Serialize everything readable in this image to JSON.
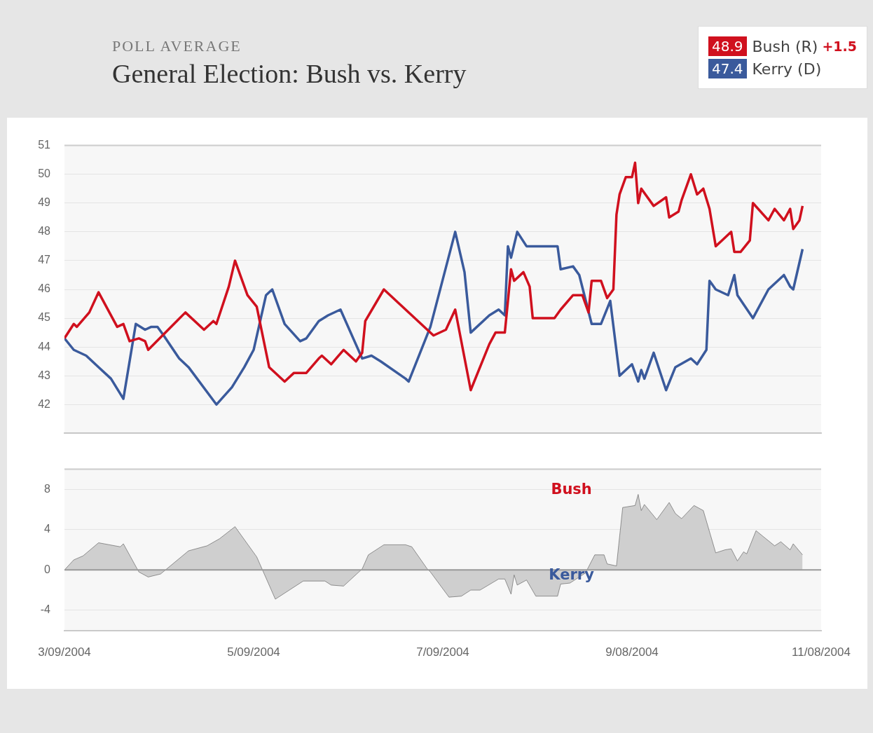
{
  "chart_data": [
    {
      "type": "line",
      "title": "General Election: Bush vs. Kerry",
      "subtitle": "POLL AVERAGE",
      "annotations": [
        "48.9",
        "47.4",
        "+1.5"
      ],
      "legend": "top right",
      "grid": "y",
      "tick_labels": "y",
      "line_style": "solid",
      "xlim": [
        "2004-03-09",
        "2004-11-08"
      ],
      "ylim": [
        41,
        51
      ],
      "yticks": [
        42,
        43,
        44,
        45,
        46,
        47,
        48,
        49,
        50,
        51
      ],
      "series": [
        {
          "name": "Bush (R)",
          "color": "#d0101e",
          "x": [
            "2004-03-09",
            "2004-03-12",
            "2004-03-13",
            "2004-03-17",
            "2004-03-20",
            "2004-03-26",
            "2004-03-28",
            "2004-03-30",
            "2004-04-02",
            "2004-04-04",
            "2004-04-05",
            "2004-04-17",
            "2004-04-23",
            "2004-04-26",
            "2004-04-27",
            "2004-05-01",
            "2004-05-03",
            "2004-05-07",
            "2004-05-10",
            "2004-05-14",
            "2004-05-19",
            "2004-05-22",
            "2004-05-26",
            "2004-05-30",
            "2004-05-31",
            "2004-06-03",
            "2004-06-07",
            "2004-06-11",
            "2004-06-13",
            "2004-06-14",
            "2004-06-20",
            "2004-07-06",
            "2004-07-10",
            "2004-07-13",
            "2004-07-18",
            "2004-07-24",
            "2004-07-26",
            "2004-07-29",
            "2004-07-31",
            "2004-08-01",
            "2004-08-04",
            "2004-08-06",
            "2004-08-07",
            "2004-08-14",
            "2004-08-16",
            "2004-08-20",
            "2004-08-23",
            "2004-08-25",
            "2004-08-26",
            "2004-08-29",
            "2004-08-31",
            "2004-09-02",
            "2004-09-03",
            "2004-09-04",
            "2004-09-06",
            "2004-09-08",
            "2004-09-09",
            "2004-09-10",
            "2004-09-11",
            "2004-09-15",
            "2004-09-19",
            "2004-09-20",
            "2004-09-23",
            "2004-09-24",
            "2004-09-27",
            "2004-09-29",
            "2004-10-01",
            "2004-10-03",
            "2004-10-05",
            "2004-10-07",
            "2004-10-10",
            "2004-10-11",
            "2004-10-13",
            "2004-10-16",
            "2004-10-17",
            "2004-10-22",
            "2004-10-24",
            "2004-10-27",
            "2004-10-29",
            "2004-10-30",
            "2004-11-01",
            "2004-11-02"
          ],
          "values": [
            44.3,
            44.8,
            44.7,
            45.2,
            45.9,
            44.7,
            44.8,
            44.2,
            44.3,
            44.2,
            43.9,
            45.2,
            44.6,
            44.9,
            44.8,
            46.1,
            47.0,
            45.8,
            45.4,
            43.3,
            42.8,
            43.1,
            43.1,
            43.6,
            43.7,
            43.4,
            43.9,
            43.5,
            43.8,
            44.9,
            46.0,
            44.4,
            44.6,
            45.3,
            42.5,
            44.1,
            44.5,
            44.5,
            46.7,
            46.3,
            46.6,
            46.1,
            45.0,
            45.0,
            45.3,
            45.8,
            45.8,
            45.2,
            46.3,
            46.3,
            45.7,
            46.0,
            48.6,
            49.3,
            49.9,
            49.9,
            50.4,
            49.0,
            49.5,
            48.9,
            49.2,
            48.5,
            48.7,
            49.1,
            50.0,
            49.3,
            49.5,
            48.8,
            47.5,
            47.7,
            48.0,
            47.3,
            47.3,
            47.7,
            49.0,
            48.4,
            48.8,
            48.4,
            48.8,
            48.1,
            48.4,
            48.9
          ]
        },
        {
          "name": "Kerry (D)",
          "color": "#3a5a9c",
          "x": [
            "2004-03-09",
            "2004-03-12",
            "2004-03-16",
            "2004-03-20",
            "2004-03-24",
            "2004-03-28",
            "2004-04-01",
            "2004-04-04",
            "2004-04-06",
            "2004-04-08",
            "2004-04-10",
            "2004-04-15",
            "2004-04-18",
            "2004-04-27",
            "2004-05-02",
            "2004-05-06",
            "2004-05-09",
            "2004-05-13",
            "2004-05-15",
            "2004-05-19",
            "2004-05-24",
            "2004-05-26",
            "2004-05-30",
            "2004-06-02",
            "2004-06-06",
            "2004-06-13",
            "2004-06-16",
            "2004-06-19",
            "2004-06-27",
            "2004-06-28",
            "2004-07-05",
            "2004-07-13",
            "2004-07-16",
            "2004-07-18",
            "2004-07-24",
            "2004-07-27",
            "2004-07-29",
            "2004-07-30",
            "2004-07-31",
            "2004-08-02",
            "2004-08-05",
            "2004-08-15",
            "2004-08-16",
            "2004-08-20",
            "2004-08-22",
            "2004-08-26",
            "2004-08-29",
            "2004-09-01",
            "2004-09-04",
            "2004-09-08",
            "2004-09-10",
            "2004-09-11",
            "2004-09-12",
            "2004-09-15",
            "2004-09-19",
            "2004-09-22",
            "2004-09-27",
            "2004-09-29",
            "2004-10-02",
            "2004-10-03",
            "2004-10-05",
            "2004-10-09",
            "2004-10-11",
            "2004-10-12",
            "2004-10-17",
            "2004-10-22",
            "2004-10-27",
            "2004-10-29",
            "2004-10-30",
            "2004-11-02"
          ],
          "values": [
            44.3,
            43.9,
            43.7,
            43.3,
            42.9,
            42.2,
            44.8,
            44.6,
            44.7,
            44.7,
            44.4,
            43.6,
            43.3,
            42.0,
            42.6,
            43.3,
            43.9,
            45.8,
            46.0,
            44.8,
            44.2,
            44.3,
            44.9,
            45.1,
            45.3,
            43.6,
            43.7,
            43.5,
            42.9,
            42.8,
            44.7,
            48.0,
            46.6,
            44.5,
            45.1,
            45.3,
            45.1,
            47.5,
            47.1,
            48.0,
            47.5,
            47.5,
            46.7,
            46.8,
            46.5,
            44.8,
            44.8,
            45.6,
            43.0,
            43.4,
            42.8,
            43.2,
            42.9,
            43.8,
            42.5,
            43.3,
            43.6,
            43.4,
            43.9,
            46.3,
            46.0,
            45.8,
            46.5,
            45.8,
            45.0,
            46.0,
            46.5,
            46.1,
            46.0,
            47.4
          ]
        }
      ]
    },
    {
      "type": "area",
      "annotations": [
        "Bush",
        "Kerry"
      ],
      "grid": "y",
      "xlim": [
        "2004-03-09",
        "2004-11-08"
      ],
      "xticks": [
        {
          "value": "2004-03-09",
          "label": "3/09/2004"
        },
        {
          "value": "2004-05-09",
          "label": "5/09/2004"
        },
        {
          "value": "2004-07-09",
          "label": "7/09/2004"
        },
        {
          "value": "2004-09-08",
          "label": "9/08/2004"
        },
        {
          "value": "2004-11-08",
          "label": "11/08/2004"
        }
      ],
      "ylim": [
        -6,
        10
      ],
      "yticks": [
        -4,
        0,
        4,
        8
      ],
      "ref_lines": [
        {
          "axis": "y",
          "value": 0,
          "color": "#999999"
        }
      ],
      "series": [
        {
          "color": "#cfcfcf",
          "x": [
            "2004-03-09",
            "2004-03-12",
            "2004-03-15",
            "2004-03-20",
            "2004-03-27",
            "2004-03-28",
            "2004-04-02",
            "2004-04-05",
            "2004-04-09",
            "2004-04-18",
            "2004-04-24",
            "2004-04-28",
            "2004-05-03",
            "2004-05-10",
            "2004-05-16",
            "2004-05-25",
            "2004-06-01",
            "2004-06-03",
            "2004-06-07",
            "2004-06-13",
            "2004-06-15",
            "2004-06-20",
            "2004-06-27",
            "2004-06-29",
            "2004-07-04",
            "2004-07-05",
            "2004-07-11",
            "2004-07-15",
            "2004-07-18",
            "2004-07-21",
            "2004-07-27",
            "2004-07-29",
            "2004-07-31",
            "2004-08-01",
            "2004-08-02",
            "2004-08-05",
            "2004-08-08",
            "2004-08-15",
            "2004-08-16",
            "2004-08-19",
            "2004-08-24",
            "2004-08-27",
            "2004-08-30",
            "2004-08-31",
            "2004-09-03",
            "2004-09-05",
            "2004-09-09",
            "2004-09-10",
            "2004-09-11",
            "2004-09-12",
            "2004-09-16",
            "2004-09-20",
            "2004-09-22",
            "2004-09-24",
            "2004-09-28",
            "2004-10-01",
            "2004-10-05",
            "2004-10-08",
            "2004-10-10",
            "2004-10-12",
            "2004-10-14",
            "2004-10-15",
            "2004-10-18",
            "2004-10-20",
            "2004-10-24",
            "2004-10-26",
            "2004-10-29",
            "2004-10-30",
            "2004-11-02"
          ],
          "values": [
            0,
            1.0,
            1.4,
            2.7,
            2.3,
            2.6,
            -0.2,
            -0.7,
            -0.4,
            1.9,
            2.4,
            3.1,
            4.3,
            1.3,
            -2.9,
            -1.1,
            -1.1,
            -1.5,
            -1.6,
            0.1,
            1.5,
            2.5,
            2.5,
            2.3,
            0.1,
            -0.2,
            -2.7,
            -2.6,
            -2.0,
            -2.0,
            -0.9,
            -0.9,
            -2.4,
            -0.5,
            -1.5,
            -1.0,
            -2.6,
            -2.6,
            -1.4,
            -1.3,
            -0.3,
            1.5,
            1.5,
            0.6,
            0.4,
            6.2,
            6.4,
            7.5,
            5.9,
            6.5,
            5.0,
            6.7,
            5.6,
            5.1,
            6.4,
            5.9,
            1.7,
            2.0,
            2.1,
            0.9,
            1.8,
            1.6,
            3.9,
            3.4,
            2.4,
            2.8,
            2.0,
            2.6,
            1.5
          ]
        }
      ]
    }
  ]
}
